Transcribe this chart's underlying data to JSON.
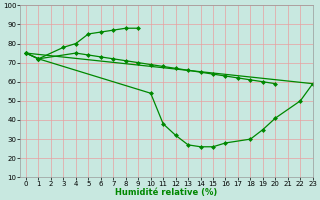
{
  "xlabel": "Humidité relative (%)",
  "bg_color": "#c8e8e0",
  "grid_color": "#e8a0a0",
  "line_color": "#008800",
  "xlim": [
    -0.5,
    23
  ],
  "ylim": [
    10,
    100
  ],
  "xticks": [
    0,
    1,
    2,
    3,
    4,
    5,
    6,
    7,
    8,
    9,
    10,
    11,
    12,
    13,
    14,
    15,
    16,
    17,
    18,
    19,
    20,
    21,
    22,
    23
  ],
  "yticks": [
    10,
    20,
    30,
    40,
    50,
    60,
    70,
    80,
    90,
    100
  ],
  "line1_x": [
    0,
    1,
    3,
    4,
    5,
    6,
    7,
    8,
    9
  ],
  "line1_y": [
    75,
    72,
    78,
    80,
    85,
    86,
    87,
    88,
    88
  ],
  "line2_x": [
    0,
    1,
    10,
    11,
    12,
    13,
    14,
    15,
    16,
    18,
    19,
    20,
    22,
    23
  ],
  "line2_y": [
    75,
    72,
    54,
    38,
    32,
    27,
    26,
    26,
    28,
    30,
    35,
    41,
    50,
    59
  ],
  "line3_x": [
    0,
    1,
    4,
    5,
    6,
    7,
    8,
    9,
    10,
    11,
    12,
    13,
    14,
    15,
    16,
    17,
    18,
    19,
    20
  ],
  "line3_y": [
    75,
    72,
    75,
    74,
    73,
    72,
    71,
    70,
    69,
    68,
    67,
    66,
    65,
    64,
    63,
    62,
    61,
    60,
    59
  ],
  "line4_x": [
    0,
    23
  ],
  "line4_y": [
    75,
    59
  ],
  "xlabel_fontsize": 6.0,
  "tick_fontsize": 5.0
}
